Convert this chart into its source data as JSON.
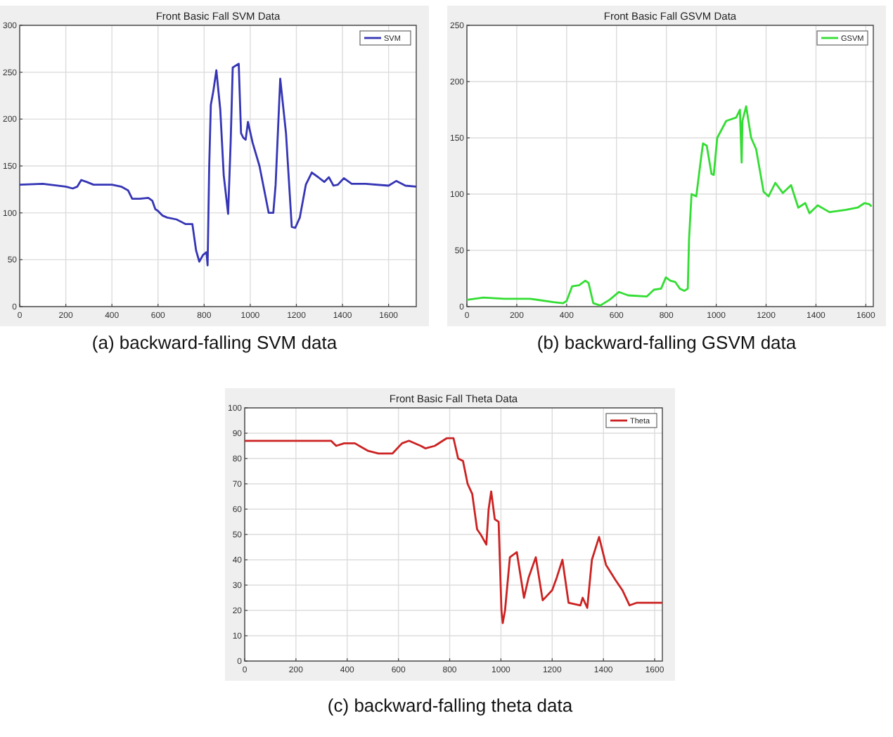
{
  "chart_data": [
    {
      "type": "line",
      "title": "Front Basic Fall SVM Data",
      "annotations": [
        "(a) backward-falling SVM data"
      ],
      "xlim": [
        0,
        1720
      ],
      "xticks": [
        0,
        200,
        400,
        600,
        800,
        1000,
        1200,
        1400,
        1600
      ],
      "ylim": [
        0,
        300
      ],
      "yticks": [
        0,
        50,
        100,
        150,
        200,
        250,
        300
      ],
      "grid": true,
      "legend": "top right",
      "line_style": "solid",
      "series": [
        {
          "name": "SVM",
          "color": "#3535b5",
          "x": [
            0,
            100,
            200,
            230,
            250,
            267,
            290,
            320,
            400,
            440,
            470,
            488,
            520,
            558,
            575,
            588,
            600,
            620,
            640,
            680,
            720,
            749,
            765,
            779,
            795,
            810,
            815,
            822,
            829,
            840,
            853,
            870,
            885,
            904,
            915,
            924,
            950,
            960,
            970,
            980,
            990,
            1010,
            1040,
            1060,
            1080,
            1100,
            1110,
            1130,
            1155,
            1180,
            1195,
            1215,
            1241,
            1267,
            1295,
            1321,
            1341,
            1361,
            1380,
            1406,
            1440,
            1500,
            1600,
            1633,
            1673,
            1720
          ],
          "values": [
            130,
            131,
            128,
            126,
            128,
            135,
            133,
            130,
            130,
            128,
            124,
            115,
            115,
            116,
            113,
            104,
            102,
            97,
            95,
            93,
            88,
            88,
            60,
            48,
            55,
            58,
            44,
            150,
            215,
            230,
            252,
            210,
            140,
            99,
            175,
            255,
            259,
            185,
            180,
            178,
            197,
            175,
            150,
            125,
            100,
            100,
            130,
            243,
            185,
            85,
            84,
            95,
            130,
            143,
            138,
            133,
            138,
            129,
            130,
            137,
            131,
            131,
            129,
            134,
            129,
            128
          ]
        }
      ]
    },
    {
      "type": "line",
      "title": "Front Basic Fall GSVM Data",
      "annotations": [
        "(b) backward-falling GSVM data"
      ],
      "xlim": [
        0,
        1630
      ],
      "xticks": [
        0,
        200,
        400,
        600,
        800,
        1000,
        1200,
        1400,
        1600
      ],
      "ylim": [
        0,
        250
      ],
      "yticks": [
        0,
        50,
        100,
        150,
        200,
        250
      ],
      "grid": true,
      "legend": "top right",
      "line_style": "solid",
      "series": [
        {
          "name": "GSVM",
          "color": "#33dd33",
          "x": [
            0,
            66,
            150,
            253,
            347,
            385,
            400,
            422,
            450,
            475,
            488,
            507,
            535,
            572,
            610,
            647,
            722,
            750,
            779,
            798,
            816,
            835,
            854,
            872,
            886,
            891,
            901,
            920,
            938,
            947,
            962,
            981,
            990,
            1004,
            1040,
            1080,
            1095,
            1102,
            1105,
            1120,
            1140,
            1160,
            1190,
            1210,
            1237,
            1267,
            1300,
            1329,
            1357,
            1374,
            1407,
            1454,
            1520,
            1567,
            1595,
            1614,
            1623
          ],
          "values": [
            6,
            8,
            7,
            7,
            4,
            3,
            5,
            18,
            19,
            23,
            21,
            3,
            1,
            6,
            13,
            10,
            9,
            15,
            16,
            26,
            23,
            22,
            16,
            14,
            16,
            60,
            100,
            98,
            130,
            145,
            143,
            118,
            117,
            150,
            165,
            168,
            175,
            128,
            165,
            178,
            150,
            140,
            102,
            98,
            110,
            101,
            108,
            88,
            92,
            83,
            90,
            84,
            86,
            88,
            92,
            91,
            89
          ]
        }
      ]
    },
    {
      "type": "line",
      "title": "Front Basic Fall Theta Data",
      "annotations": [
        "(c) backward-falling theta data"
      ],
      "xlim": [
        0,
        1630
      ],
      "xticks": [
        0,
        200,
        400,
        600,
        800,
        1000,
        1200,
        1400,
        1600
      ],
      "ylim": [
        0,
        100
      ],
      "yticks": [
        0,
        10,
        20,
        30,
        40,
        50,
        60,
        70,
        80,
        90,
        100
      ],
      "grid": true,
      "legend": "top right",
      "line_style": "solid",
      "series": [
        {
          "name": "Theta",
          "color": "#cc2222",
          "x": [
            0,
            337,
            357,
            388,
            430,
            482,
            522,
            577,
            614,
            641,
            687,
            705,
            742,
            788,
            815,
            833,
            852,
            870,
            888,
            907,
            921,
            943,
            952,
            962,
            976,
            991,
            1002,
            1007,
            1016,
            1035,
            1062,
            1090,
            1108,
            1136,
            1163,
            1200,
            1218,
            1240,
            1264,
            1310,
            1319,
            1337,
            1355,
            1383,
            1410,
            1447,
            1474,
            1502,
            1529,
            1630
          ],
          "values": [
            87,
            87,
            85,
            86,
            86,
            83,
            82,
            82,
            86,
            87,
            85,
            84,
            85,
            88,
            88,
            80,
            79,
            70,
            66,
            52,
            50,
            46,
            60,
            67,
            56,
            55,
            20,
            15,
            20,
            41,
            43,
            25,
            33,
            41,
            24,
            28,
            33,
            40,
            23,
            22,
            25,
            21,
            40,
            49,
            38,
            32,
            28,
            22,
            23,
            23
          ]
        }
      ]
    }
  ]
}
